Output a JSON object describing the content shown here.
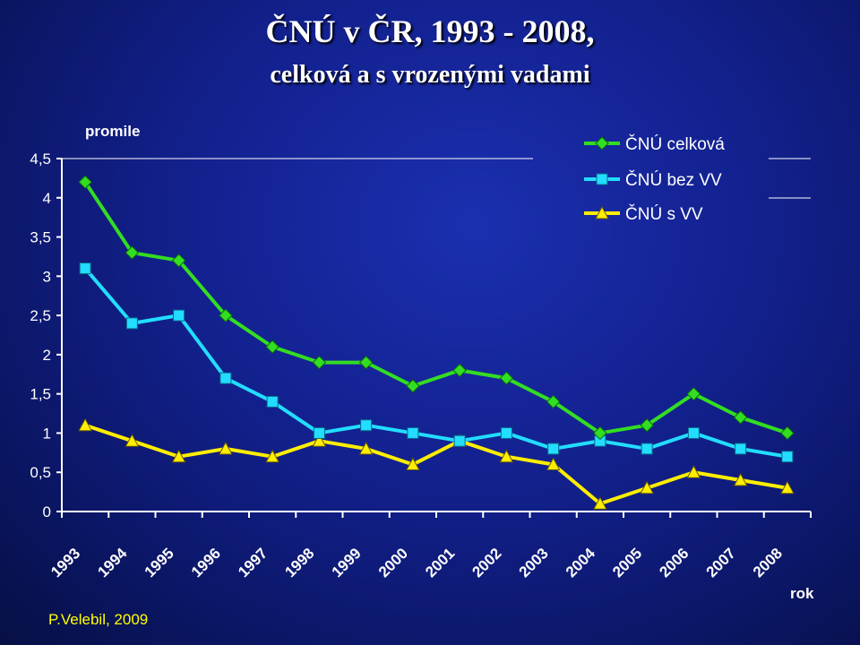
{
  "title": "ČNÚ v ČR, 1993 - 2008,",
  "subtitle": "celková a s vrozenými vadami",
  "author": "P.Velebil, 2009",
  "colors": {
    "series_total": "#33dd22",
    "series_without": "#22ddff",
    "series_with": "#ffee00",
    "axis_text": "#ffffff",
    "grid": "#ffffff"
  },
  "chart_data": {
    "type": "line",
    "ylabel": "promile",
    "xlabel": "rok",
    "ylim": [
      0,
      4.5
    ],
    "y_ticks": [
      "0",
      "0,5",
      "1",
      "1,5",
      "2",
      "2,5",
      "3",
      "3,5",
      "4",
      "4,5"
    ],
    "categories": [
      "1993",
      "1994",
      "1995",
      "1996",
      "1997",
      "1998",
      "1999",
      "2000",
      "2001",
      "2002",
      "2003",
      "2004",
      "2005",
      "2006",
      "2007",
      "2008"
    ],
    "series": [
      {
        "name": "ČNÚ celková",
        "marker": "diamond",
        "values": [
          4.2,
          3.3,
          3.2,
          2.5,
          2.1,
          1.9,
          1.9,
          1.6,
          1.8,
          1.7,
          1.4,
          1.0,
          1.1,
          1.5,
          1.2,
          1.0
        ]
      },
      {
        "name": "ČNÚ bez VV",
        "marker": "square",
        "values": [
          3.1,
          2.4,
          2.5,
          1.7,
          1.4,
          1.0,
          1.1,
          1.0,
          0.9,
          1.0,
          0.8,
          0.9,
          0.8,
          1.0,
          0.8,
          0.7
        ]
      },
      {
        "name": "ČNÚ s VV",
        "marker": "triangle",
        "values": [
          1.1,
          0.9,
          0.7,
          0.8,
          0.7,
          0.9,
          0.8,
          0.6,
          0.9,
          0.7,
          0.6,
          0.1,
          0.3,
          0.5,
          0.4,
          0.3
        ]
      }
    ],
    "legend_position": "top-right",
    "grid": false
  }
}
